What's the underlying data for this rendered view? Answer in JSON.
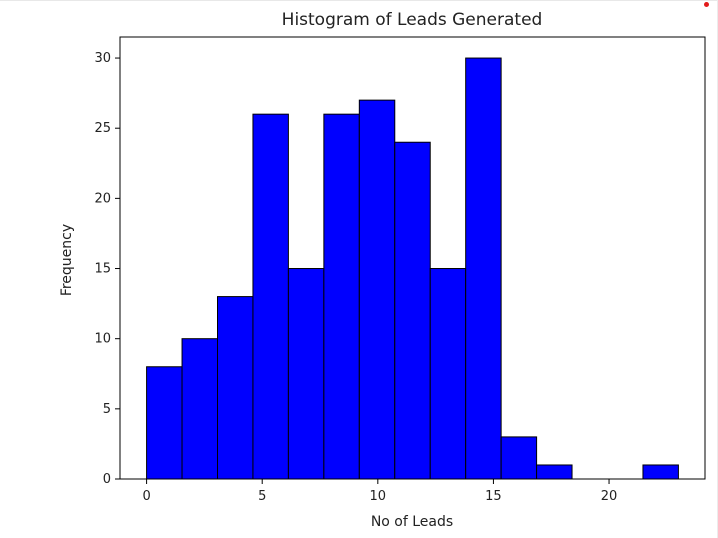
{
  "chart_data": {
    "type": "bar",
    "title": "Histogram of Leads Generated",
    "xlabel": "No of Leads",
    "ylabel": "Frequency",
    "bin_edges": [
      0,
      1.5333,
      3.0667,
      4.6,
      6.1333,
      7.6667,
      9.2,
      10.7333,
      12.2667,
      13.8,
      15.3333,
      16.8667,
      18.4,
      19.9333,
      21.4667,
      23
    ],
    "values": [
      8,
      10,
      13,
      26,
      15,
      26,
      27,
      24,
      15,
      30,
      3,
      1,
      0,
      0,
      1
    ],
    "xlim": [
      -1.15,
      24.15
    ],
    "ylim": [
      0,
      31.5
    ],
    "xticks": [
      0,
      5,
      10,
      15,
      20
    ],
    "yticks": [
      0,
      5,
      10,
      15,
      20,
      25,
      30
    ],
    "xtick_labels": [
      "0",
      "5",
      "10",
      "15",
      "20"
    ],
    "ytick_labels": [
      "0",
      "5",
      "10",
      "15",
      "20",
      "25",
      "30"
    ],
    "grid": false,
    "bar_color": "#0000ff",
    "edge_color": "#000000"
  }
}
